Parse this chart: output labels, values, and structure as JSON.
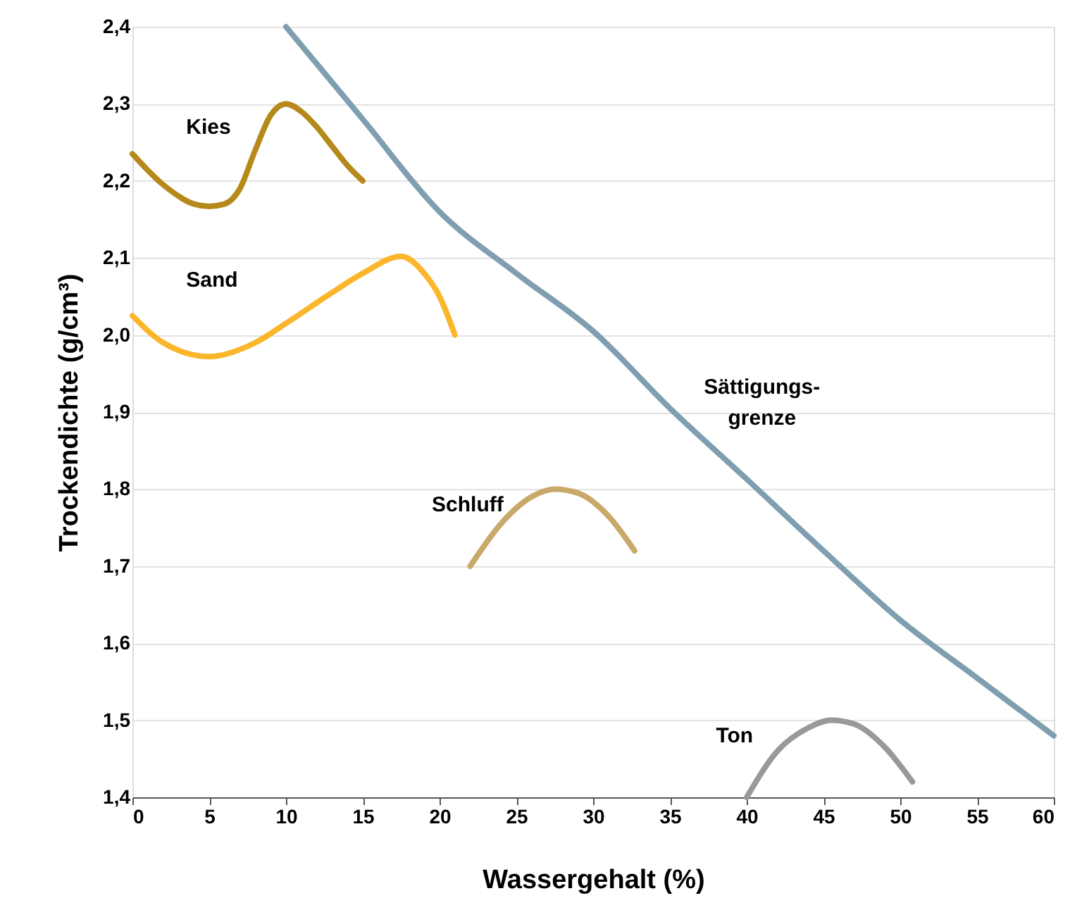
{
  "chart_data": {
    "type": "line",
    "xlabel": "Wassergehalt (%)",
    "ylabel": "Trockendichte (g/cm³)",
    "xlim": [
      0,
      60
    ],
    "xticks": [
      0,
      5,
      10,
      15,
      20,
      25,
      30,
      35,
      40,
      45,
      50,
      55,
      60
    ],
    "ylim": [
      1.4,
      2.4
    ],
    "yticks": [
      {
        "value": 1.4,
        "label": "1,4"
      },
      {
        "value": 1.5,
        "label": "1,5"
      },
      {
        "value": 1.6,
        "label": "1,6"
      },
      {
        "value": 1.7,
        "label": "1,7"
      },
      {
        "value": 1.8,
        "label": "1,8"
      },
      {
        "value": 1.9,
        "label": "1,9"
      },
      {
        "value": 2.0,
        "label": "2,0"
      },
      {
        "value": 2.1,
        "label": "2,1"
      },
      {
        "value": 2.2,
        "label": "2,2"
      },
      {
        "value": 2.3,
        "label": "2,3"
      },
      {
        "value": 2.4,
        "label": "2,4"
      }
    ],
    "grid": "y",
    "marker": "none",
    "line_style": "solid",
    "series": [
      {
        "name": "Kies",
        "color": "#b5891a",
        "x": [
          0,
          2,
          4,
          5,
          6,
          7,
          8,
          9,
          10,
          11,
          12,
          13,
          14,
          15
        ],
        "values": [
          2.235,
          2.195,
          2.17,
          2.167,
          2.17,
          2.19,
          2.24,
          2.285,
          2.3,
          2.29,
          2.27,
          2.245,
          2.22,
          2.2
        ]
      },
      {
        "name": "Sand",
        "color": "#fbb62b",
        "x": [
          0,
          2,
          5,
          8,
          10,
          13,
          15,
          17.5,
          19,
          20,
          21
        ],
        "values": [
          2.025,
          1.99,
          1.972,
          1.99,
          2.015,
          2.055,
          2.08,
          2.102,
          2.08,
          2.05,
          2.0
        ]
      },
      {
        "name": "Schluff",
        "color": "#c9a96a",
        "x": [
          22,
          24,
          26,
          27.5,
          29,
          31,
          32.7
        ],
        "values": [
          1.7,
          1.755,
          1.79,
          1.8,
          1.795,
          1.765,
          1.72
        ]
      },
      {
        "name": "Ton",
        "color": "#999999",
        "x": [
          40,
          42,
          44,
          45.5,
          47,
          49,
          50.8
        ],
        "values": [
          1.4,
          1.46,
          1.49,
          1.5,
          1.495,
          1.465,
          1.42
        ]
      },
      {
        "name": "Sättigungs-\ngrenze",
        "color": "#7f9fb0",
        "x": [
          10,
          15,
          20,
          25,
          30,
          35,
          40,
          45,
          50,
          55,
          60
        ],
        "values": [
          2.4,
          2.28,
          2.16,
          2.08,
          2.005,
          1.905,
          1.813,
          1.72,
          1.63,
          1.555,
          1.48
        ]
      }
    ]
  }
}
